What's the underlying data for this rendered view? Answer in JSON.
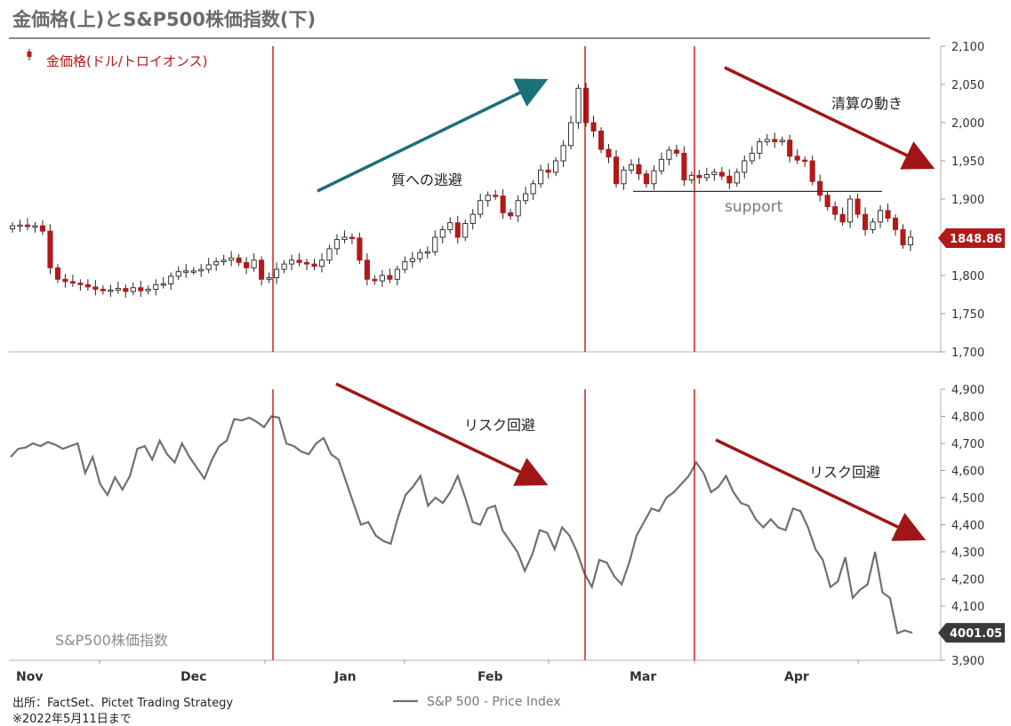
{
  "title": "金価格(上)とS&P500株価指数(下)",
  "source": "出所：FactSet、Pictet Trading Strategy",
  "note": "※2022年5月11日まで",
  "colors": {
    "candle_up": "#ffffff",
    "candle_down": "#b21a1a",
    "sp_line": "#707070",
    "event_line": "#c00000",
    "arrow_teal": "#1d6f7a",
    "arrow_red": "#a01616",
    "support": "#333333"
  },
  "chart_data": [
    {
      "type": "candlestick",
      "legend": "金価格(ドル/トロイオンス)",
      "ylim": [
        1700,
        2100
      ],
      "yticks": [
        "1,700",
        "1,750",
        "1,800",
        "1,850",
        "1,900",
        "1,950",
        "2,000",
        "2,050",
        "2,100"
      ],
      "last_value_label": "1848.86",
      "annotations": {
        "flight": "質への逃避",
        "liquidation": "清算の動き",
        "support": "support",
        "support_level": 1910
      },
      "series": [
        {
          "c": [
            1865,
            1866,
            1864,
            1865,
            1858,
            1810,
            1795,
            1792,
            1790,
            1788,
            1785,
            1782,
            1780,
            1781,
            1783,
            1779,
            1784,
            1780,
            1782,
            1788,
            1789,
            1799,
            1805,
            1806,
            1806,
            1808,
            1814,
            1818,
            1820,
            1823,
            1817,
            1810,
            1820,
            1795,
            1797,
            1808,
            1815,
            1820,
            1817,
            1815,
            1812,
            1820,
            1835,
            1847,
            1850,
            1849,
            1820,
            1795,
            1793,
            1800,
            1795,
            1808,
            1818,
            1822,
            1830,
            1831,
            1850,
            1860,
            1869,
            1850,
            1868,
            1880,
            1898,
            1905,
            1904,
            1882,
            1878,
            1898,
            1907,
            1920,
            1938,
            1935,
            1950,
            1970,
            2000,
            2045,
            2000,
            1989,
            1965,
            1955,
            1920,
            1938,
            1945,
            1933,
            1920,
            1937,
            1952,
            1964,
            1960,
            1925,
            1931,
            1928,
            1932,
            1935,
            1930,
            1921,
            1935,
            1950,
            1960,
            1975,
            1978,
            1975,
            1977,
            1956,
            1951,
            1950,
            1923,
            1905,
            1890,
            1880,
            1870,
            1900,
            1880,
            1860,
            1870,
            1885,
            1875,
            1860,
            1840,
            1850
          ]
        }
      ]
    },
    {
      "type": "line",
      "ylim": [
        3900,
        4900
      ],
      "yticks": [
        "3,900",
        "4,000",
        "4,100",
        "4,200",
        "4,300",
        "4,400",
        "4,500",
        "4,600",
        "4,700",
        "4,800",
        "4,900"
      ],
      "last_value_label": "4001.05",
      "panel_label": "S&P500株価指数",
      "annotations": {
        "risk_off": "リスク回避"
      },
      "series": [
        {
          "name": "S&P 500 - Price Index",
          "values": [
            4650,
            4680,
            4685,
            4700,
            4690,
            4705,
            4695,
            4680,
            4690,
            4700,
            4590,
            4650,
            4550,
            4510,
            4575,
            4530,
            4580,
            4680,
            4690,
            4640,
            4710,
            4660,
            4630,
            4700,
            4650,
            4610,
            4570,
            4640,
            4690,
            4710,
            4790,
            4785,
            4795,
            4780,
            4760,
            4800,
            4795,
            4700,
            4690,
            4670,
            4660,
            4700,
            4720,
            4660,
            4640,
            4560,
            4480,
            4400,
            4410,
            4360,
            4340,
            4330,
            4430,
            4510,
            4540,
            4580,
            4470,
            4500,
            4480,
            4520,
            4580,
            4500,
            4410,
            4400,
            4460,
            4470,
            4380,
            4340,
            4300,
            4230,
            4290,
            4380,
            4370,
            4310,
            4390,
            4360,
            4300,
            4220,
            4170,
            4270,
            4260,
            4210,
            4180,
            4260,
            4360,
            4410,
            4460,
            4450,
            4500,
            4520,
            4550,
            4580,
            4630,
            4590,
            4520,
            4540,
            4580,
            4520,
            4480,
            4470,
            4420,
            4390,
            4420,
            4390,
            4380,
            4460,
            4450,
            4390,
            4310,
            4270,
            4170,
            4190,
            4280,
            4130,
            4160,
            4180,
            4300,
            4150,
            4130,
            4000,
            4010,
            4001
          ]
        }
      ]
    }
  ],
  "x_axis": {
    "labels": [
      "Nov",
      "Dec",
      "Jan",
      "Feb",
      "Mar",
      "Apr"
    ]
  }
}
